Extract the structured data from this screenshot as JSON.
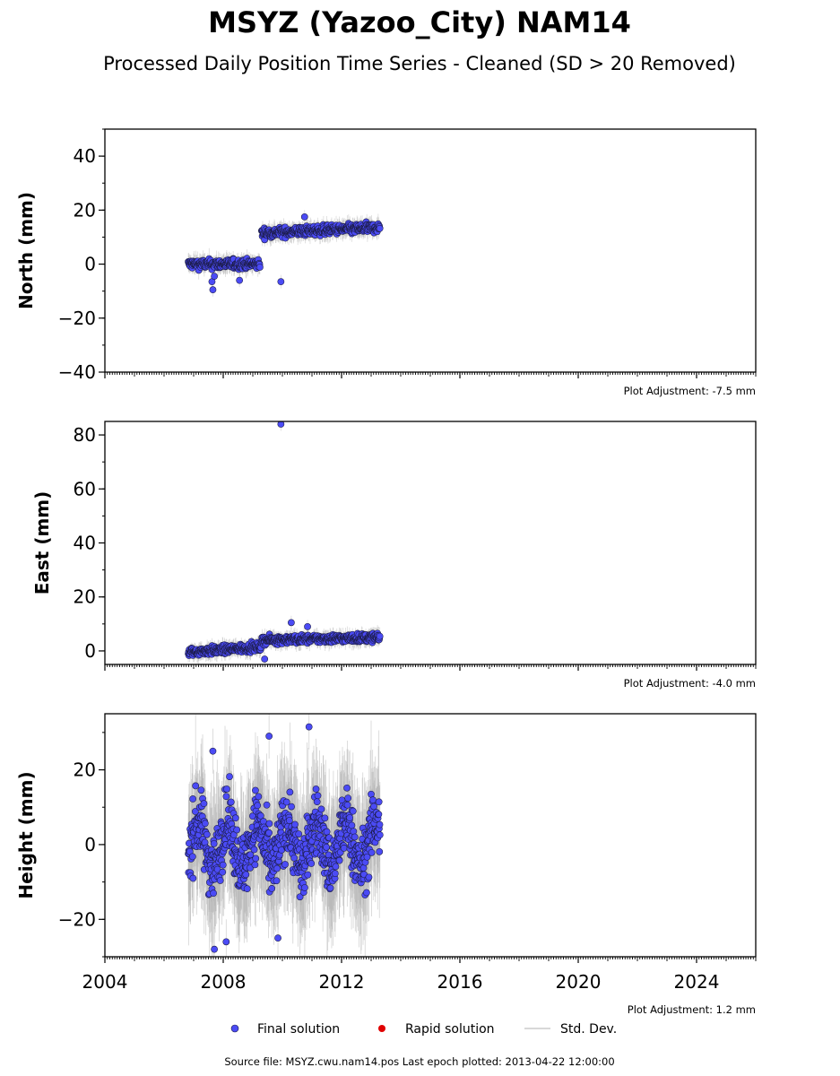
{
  "title": "MSYZ (Yazoo_City) NAM14",
  "subtitle": "Processed Daily Position Time Series - Cleaned (SD > 20 Removed)",
  "source_note": "Source file: MSYZ.cwu.nam14.pos  Last epoch plotted: 2013-04-22 12:00:00",
  "legend": {
    "final": "Final solution",
    "rapid": "Rapid solution",
    "std": "Std. Dev."
  },
  "colors": {
    "final": "#4b4bf5",
    "rapid": "#e00000",
    "std": "#b0b0b0",
    "edge": "#1a1a40"
  },
  "chart_data": [
    {
      "type": "scatter",
      "panel": "north",
      "ylabel": "North (mm)",
      "adjustment": "Plot Adjustment: -7.5 mm",
      "xlim": [
        2004.0,
        2026.0
      ],
      "ylim": [
        -40,
        50
      ],
      "yticks": [
        40,
        20,
        0,
        -20,
        -40
      ],
      "ytick_labels": [
        "40",
        "20",
        "0",
        "−20",
        "−40"
      ],
      "series": [
        {
          "name": "Final solution",
          "segments": [
            {
              "from": 2006.82,
              "to": 2009.25,
              "mean": 0,
              "spread": 1.6
            },
            {
              "from": 2009.3,
              "to": 2013.3,
              "mean_start": 11.5,
              "mean_end": 13.5,
              "spread": 1.6
            }
          ],
          "outliers": [
            [
              2007.65,
              -9.5
            ],
            [
              2007.62,
              -6.5
            ],
            [
              2007.7,
              -4.5
            ],
            [
              2008.55,
              -6.0
            ],
            [
              2009.95,
              -6.5
            ],
            [
              2010.75,
              17.5
            ]
          ]
        }
      ]
    },
    {
      "type": "scatter",
      "panel": "east",
      "ylabel": "East (mm)",
      "adjustment": "Plot Adjustment: -4.0 mm",
      "xlim": [
        2004.0,
        2026.0
      ],
      "ylim": [
        -5,
        85
      ],
      "yticks": [
        80,
        60,
        40,
        20,
        0
      ],
      "ytick_labels": [
        "80",
        "60",
        "40",
        "20",
        "0"
      ],
      "series": [
        {
          "name": "Final solution",
          "segments": [
            {
              "from": 2006.82,
              "to": 2009.3,
              "mean_start": -0.5,
              "mean_end": 1.5,
              "spread": 1.4
            },
            {
              "from": 2009.3,
              "to": 2013.3,
              "mean_start": 4.0,
              "mean_end": 5.0,
              "spread": 1.4
            }
          ],
          "outliers": [
            [
              2009.95,
              84.0
            ],
            [
              2010.3,
              10.5
            ],
            [
              2010.85,
              9.0
            ],
            [
              2009.4,
              -3.0
            ]
          ]
        }
      ]
    },
    {
      "type": "scatter",
      "panel": "height",
      "ylabel": "Height (mm)",
      "adjustment": "Plot Adjustment: 1.2 mm",
      "xlim": [
        2004.0,
        2026.0
      ],
      "ylim": [
        -30,
        35
      ],
      "yticks": [
        20,
        0,
        -20
      ],
      "ytick_labels": [
        "20",
        "0",
        "−20"
      ],
      "xticks": [
        2004,
        2008,
        2012,
        2016,
        2020,
        2024
      ],
      "xtick_labels": [
        "2004",
        "2008",
        "2012",
        "2016",
        "2020",
        "2024"
      ],
      "series": [
        {
          "name": "Final solution",
          "segments": [
            {
              "from": 2006.82,
              "to": 2013.3,
              "mean": 0,
              "spread": 8.0,
              "seasonal_amplitude": 6.0
            }
          ],
          "outliers": [
            [
              2007.7,
              -28.0
            ],
            [
              2009.55,
              29.0
            ],
            [
              2010.9,
              31.5
            ],
            [
              2007.65,
              25.0
            ],
            [
              2009.85,
              -25.0
            ],
            [
              2008.1,
              -26.0
            ]
          ]
        }
      ]
    }
  ]
}
